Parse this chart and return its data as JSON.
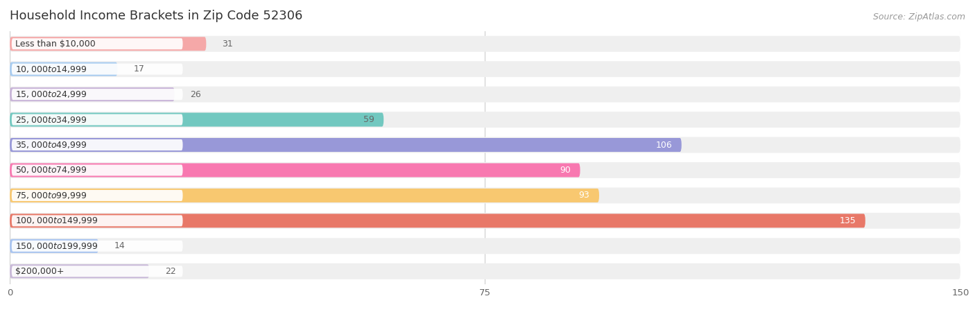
{
  "title": "Household Income Brackets in Zip Code 52306",
  "source": "Source: ZipAtlas.com",
  "categories": [
    "Less than $10,000",
    "$10,000 to $14,999",
    "$15,000 to $24,999",
    "$25,000 to $34,999",
    "$35,000 to $49,999",
    "$50,000 to $74,999",
    "$75,000 to $99,999",
    "$100,000 to $149,999",
    "$150,000 to $199,999",
    "$200,000+"
  ],
  "values": [
    31,
    17,
    26,
    59,
    106,
    90,
    93,
    135,
    14,
    22
  ],
  "bar_colors": [
    "#f5a8a8",
    "#a8ccf0",
    "#c8b4d8",
    "#72c8c0",
    "#9898d8",
    "#f878b0",
    "#f8c870",
    "#e87868",
    "#a8c4f0",
    "#c8b8d8"
  ],
  "value_label_colors": [
    "#666666",
    "#666666",
    "#666666",
    "#666666",
    "#ffffff",
    "#ffffff",
    "#ffffff",
    "#ffffff",
    "#666666",
    "#666666"
  ],
  "xlim": [
    0,
    150
  ],
  "xticks": [
    0,
    75,
    150
  ],
  "background_color": "#ffffff",
  "row_bg_color": "#efefef",
  "title_fontsize": 13,
  "source_fontsize": 9,
  "value_fontsize": 9,
  "category_fontsize": 9
}
